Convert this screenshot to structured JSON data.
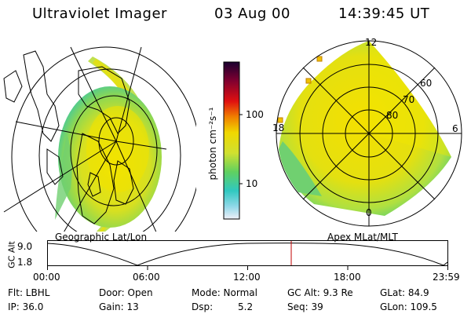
{
  "header": {
    "instrument": "Ultraviolet Imager",
    "date": "03 Aug 00",
    "time": "14:39:45 UT"
  },
  "left_panel": {
    "caption": "Geographic Lat/Lon"
  },
  "right_panel": {
    "caption": "Apex MLat/MLT",
    "mlt_labels": {
      "top": "12",
      "right": "6",
      "bottom": "0",
      "left": "18"
    },
    "lat_labels": [
      "80",
      "70",
      "60"
    ]
  },
  "colorbar": {
    "unit_label": "photon cm⁻²s⁻¹",
    "tick_labels": [
      "100",
      "10"
    ]
  },
  "timeline": {
    "y_axis_label": "GC Alt",
    "y_ticks": [
      "9.0",
      "1.8"
    ],
    "x_ticks": [
      "00:00",
      "06:00",
      "12:00",
      "18:00",
      "23:59"
    ]
  },
  "status": {
    "flt": "Flt: LBHL",
    "ip": "IP: 36.0",
    "door": "Door: Open",
    "gain": "Gain: 13",
    "mode": "Mode: Normal",
    "dsp": "Dsp:",
    "dsp_value": "5.2",
    "gc_alt": "GC Alt: 9.3 Re",
    "seq": "Seq: 39",
    "glat": "GLat: 84.9",
    "glon": "GLon: 109.5"
  },
  "colors": {
    "aurora_high": "#f0e000",
    "aurora_mid": "#b8e040",
    "aurora_low": "#40c870",
    "cursor": "#c00000"
  }
}
